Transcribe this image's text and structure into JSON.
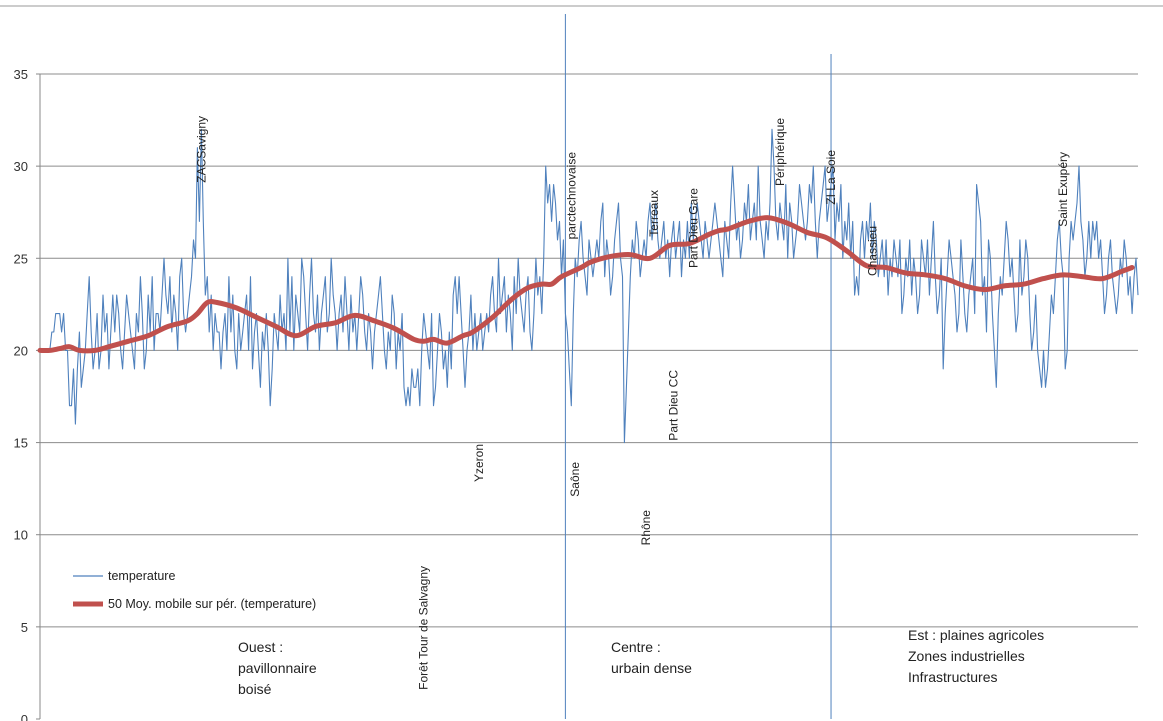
{
  "chart_data": {
    "type": "line",
    "title": "",
    "xlabel": "",
    "ylabel": "",
    "ylim": [
      0,
      35
    ],
    "yticks": [
      0,
      5,
      10,
      15,
      20,
      25,
      30,
      35
    ],
    "grid": "horizontal",
    "legend_position": "bottom-left",
    "series": [
      {
        "name": "temperature",
        "color": "#4f81bd",
        "values": [
          20,
          20,
          20,
          20,
          20,
          20,
          21,
          21,
          22,
          22,
          22,
          21,
          22,
          20,
          20,
          17,
          17,
          19,
          16,
          19,
          21,
          18,
          19,
          20,
          22,
          24,
          21,
          19,
          20,
          22,
          19,
          20,
          23,
          21,
          22,
          19,
          21,
          23,
          21,
          23,
          22,
          20,
          19,
          21,
          23,
          22,
          21,
          20,
          19,
          22,
          21,
          24,
          22,
          19,
          20,
          23,
          21,
          24,
          20,
          22,
          22,
          21,
          23,
          25,
          23,
          22,
          24,
          21,
          23,
          22,
          20,
          24,
          25,
          22,
          21,
          22,
          23,
          24,
          26,
          25,
          31,
          27,
          32,
          27,
          23,
          24,
          21,
          23,
          20,
          22,
          21,
          21,
          19,
          21,
          22,
          20,
          24,
          21,
          23,
          20,
          19,
          22,
          20,
          21,
          22,
          23,
          20,
          24,
          19,
          21,
          22,
          20,
          18,
          21,
          20,
          22,
          20,
          17,
          19,
          22,
          21,
          20,
          23,
          21,
          22,
          20,
          25,
          21,
          24,
          20,
          23,
          22,
          21,
          25,
          24,
          22,
          20,
          23,
          25,
          22,
          21,
          23,
          20,
          22,
          23,
          24,
          21,
          22,
          25,
          23,
          22,
          20,
          22,
          23,
          21,
          24,
          22,
          20,
          23,
          21,
          22,
          20,
          22,
          24,
          23,
          21,
          20,
          22,
          21,
          19,
          21,
          22,
          23,
          24,
          22,
          20,
          19,
          21,
          20,
          23,
          22,
          19,
          21,
          20,
          22,
          18,
          17,
          18,
          17,
          19,
          18,
          18,
          19,
          17,
          20,
          22,
          21,
          20,
          19,
          22,
          17,
          18,
          20,
          22,
          21,
          19,
          20,
          18,
          21,
          19,
          23,
          24,
          22,
          24,
          22,
          20,
          18,
          20,
          21,
          23,
          20,
          22,
          20,
          21,
          22,
          20,
          21,
          22,
          21,
          23,
          24,
          22,
          21,
          25,
          22,
          23,
          24,
          21,
          23,
          22,
          20,
          24,
          22,
          25,
          23,
          22,
          21,
          23,
          24,
          21,
          20,
          22,
          25,
          23,
          24,
          22,
          25,
          30,
          28,
          29,
          27,
          29,
          28,
          26,
          27,
          24,
          26,
          22,
          21,
          19,
          17,
          22,
          25,
          24,
          26,
          27,
          25,
          24,
          23,
          26,
          25,
          24,
          25,
          26,
          25,
          27,
          28,
          24,
          26,
          25,
          23,
          24,
          26,
          27,
          28,
          25,
          24,
          15,
          18,
          21,
          24,
          26,
          25,
          27,
          26,
          24,
          25,
          26,
          25,
          27,
          28,
          26,
          27,
          28,
          26,
          25,
          26,
          27,
          25,
          26,
          24,
          26,
          27,
          25,
          26,
          27,
          24,
          26,
          25,
          27,
          25,
          28,
          26,
          27,
          28,
          27,
          26,
          25,
          27,
          26,
          25,
          26,
          27,
          28,
          27,
          26,
          25,
          24,
          27,
          26,
          25,
          28,
          30,
          28,
          26,
          27,
          25,
          26,
          28,
          27,
          29,
          26,
          27,
          28,
          26,
          30,
          27,
          26,
          25,
          27,
          26,
          28,
          32,
          30,
          27,
          26,
          28,
          27,
          26,
          29,
          25,
          28,
          27,
          25,
          26,
          27,
          29,
          28,
          27,
          26,
          27,
          29,
          28,
          30,
          27,
          25,
          27,
          28,
          29,
          30,
          27,
          28,
          29,
          30,
          26,
          28,
          27,
          29,
          25,
          27,
          26,
          28,
          25,
          27,
          23,
          24,
          23,
          26,
          27,
          25,
          27,
          26,
          28,
          25,
          27,
          26,
          24,
          25,
          26,
          24,
          26,
          23,
          25,
          24,
          26,
          25,
          24,
          26,
          22,
          23,
          25,
          24,
          26,
          23,
          25,
          24,
          22,
          23,
          26,
          25,
          24,
          26,
          23,
          25,
          27,
          24,
          22,
          23,
          25,
          19,
          22,
          24,
          26,
          25,
          24,
          23,
          21,
          22,
          26,
          24,
          22,
          21,
          23,
          24,
          25,
          22,
          29,
          28,
          27,
          23,
          24,
          21,
          26,
          25,
          22,
          20,
          18,
          22,
          24,
          23,
          25,
          27,
          26,
          24,
          25,
          23,
          21,
          22,
          26,
          23,
          24,
          26,
          25,
          22,
          20,
          21,
          23,
          20,
          19,
          18,
          20,
          18,
          19,
          21,
          23,
          22,
          24,
          26,
          27,
          25,
          24,
          19,
          20,
          25,
          27,
          26,
          27,
          28,
          30,
          27,
          26,
          24,
          25,
          27,
          25,
          27,
          26,
          27,
          25,
          26,
          24,
          22,
          23,
          25,
          26,
          24,
          23,
          22,
          23,
          25,
          24,
          26,
          25,
          23,
          24,
          22,
          24,
          25,
          23
        ]
      },
      {
        "name": "50 Moy. mobile sur pér. (temperature)",
        "color": "#c0504d",
        "anchors_x": [
          0,
          5,
          10,
          15,
          20,
          28,
          35,
          45,
          55,
          65,
          75,
          80,
          85,
          90,
          100,
          110,
          120,
          130,
          140,
          150,
          160,
          170,
          180,
          190,
          195,
          200,
          207,
          215,
          220,
          230,
          240,
          248,
          255,
          260,
          265,
          275,
          280,
          290,
          300,
          310,
          320,
          330,
          340,
          345,
          350,
          360,
          370,
          380,
          390,
          400,
          410,
          420,
          430,
          440,
          450,
          460,
          470,
          480,
          490,
          500,
          510,
          520,
          530,
          540,
          550,
          555
        ],
        "anchors_y": [
          20,
          20,
          20.1,
          20.2,
          20,
          20,
          20.2,
          20.5,
          20.8,
          21.3,
          21.6,
          22,
          22.6,
          22.6,
          22.3,
          21.8,
          21.3,
          20.8,
          21.3,
          21.5,
          21.9,
          21.6,
          21.2,
          20.6,
          20.5,
          20.6,
          20.4,
          20.8,
          21,
          21.8,
          22.8,
          23.4,
          23.6,
          23.6,
          24,
          24.5,
          24.8,
          25.1,
          25.2,
          25,
          25.7,
          25.8,
          26.3,
          26.5,
          26.6,
          27,
          27.2,
          26.9,
          26.4,
          26.1,
          25.4,
          24.6,
          24.5,
          24.2,
          24.1,
          23.9,
          23.5,
          23.3,
          23.5,
          23.6,
          23.9,
          24.1,
          24,
          23.9,
          24.3,
          24.5
        ]
      }
    ],
    "annotations_top": [
      {
        "label": "ZACSavigny",
        "x": 82
      },
      {
        "label": "parctechnovaise",
        "x": 270
      },
      {
        "label": "Terreaux",
        "x": 312
      },
      {
        "label": "Part Dieu Gare",
        "x": 332
      },
      {
        "label": "Périphérique",
        "x": 376
      },
      {
        "label": "ZI La Soie",
        "x": 402
      },
      {
        "label": "Chassieu",
        "x": 423
      },
      {
        "label": "Saint Exupéry",
        "x": 520
      }
    ],
    "annotations_bottom": [
      {
        "label": "Forêt Tour de Salvagny",
        "x": 195
      },
      {
        "label": "Yzeron",
        "x": 223
      },
      {
        "label": "Saône",
        "x": 272
      },
      {
        "label": "Rhône",
        "x": 308
      },
      {
        "label": "Part Dieu CC",
        "x": 322
      }
    ],
    "dividers_x": [
      267,
      402
    ],
    "regions": [
      {
        "lines": [
          "Ouest :",
          "pavillonnaire",
          "boisé"
        ]
      },
      {
        "lines": [
          "Centre :",
          "urbain dense"
        ]
      },
      {
        "lines": [
          "Est : plaines agricoles",
          "Zones industrielles",
          "Infrastructures"
        ]
      }
    ]
  }
}
